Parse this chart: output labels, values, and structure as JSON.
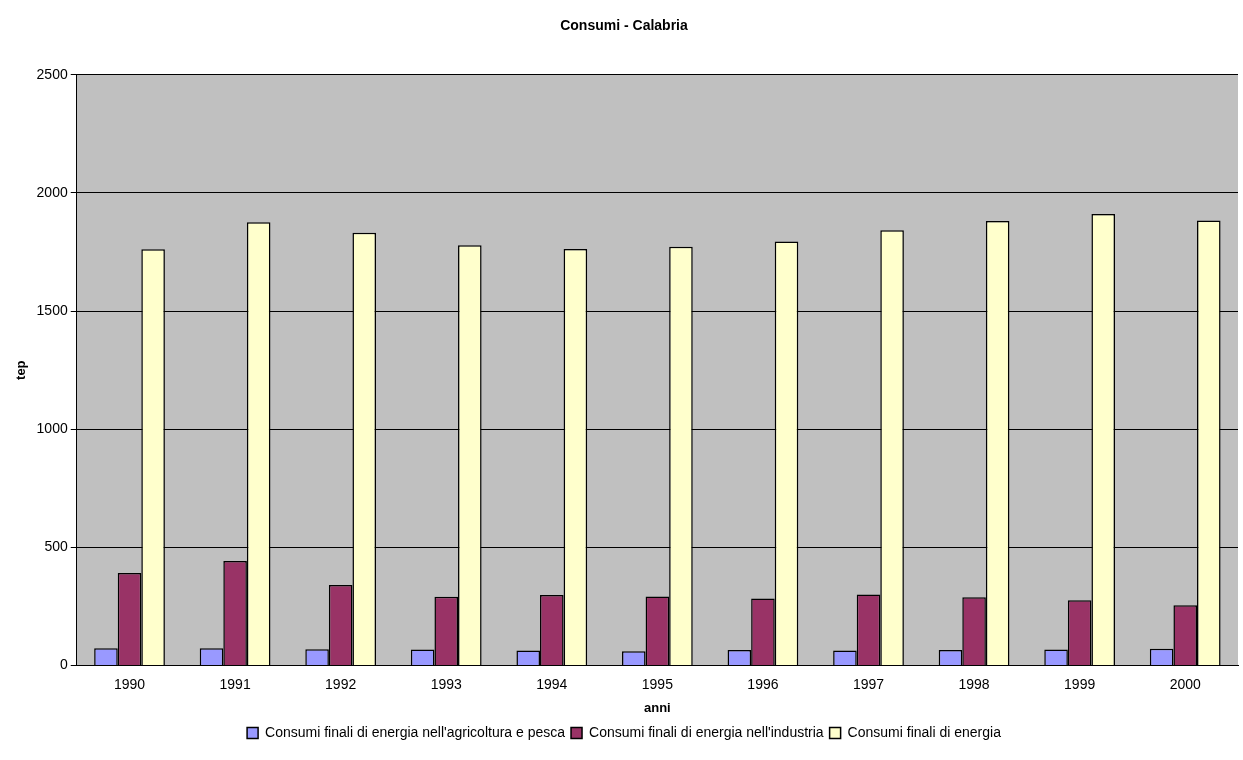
{
  "chart_data": {
    "type": "bar",
    "title": "Consumi - Calabria",
    "xlabel": "anni",
    "ylabel": "tep",
    "categories": [
      "1990",
      "1991",
      "1992",
      "1993",
      "1994",
      "1995",
      "1996",
      "1997",
      "1998",
      "1999",
      "2000"
    ],
    "series": [
      {
        "name": "Consumi finali di energia nell'agricoltura e pesca",
        "color": "#9999ff",
        "values": [
          73,
          73,
          69,
          68,
          64,
          61,
          66,
          64,
          66,
          68,
          71
        ]
      },
      {
        "name": "Consumi finali di energia nell'industria",
        "color": "#993366",
        "values": [
          392,
          443,
          341,
          291,
          299,
          292,
          284,
          301,
          289,
          277,
          255
        ]
      },
      {
        "name": "Consumi finali di energia",
        "color": "#ffffcc",
        "values": [
          1762,
          1876,
          1832,
          1779,
          1763,
          1772,
          1795,
          1842,
          1881,
          1911,
          1883
        ]
      }
    ],
    "ylim": [
      0,
      2500
    ],
    "yticks": [
      0,
      500,
      1000,
      1500,
      2000,
      2500
    ],
    "grid": "y",
    "legend": "bottom"
  }
}
